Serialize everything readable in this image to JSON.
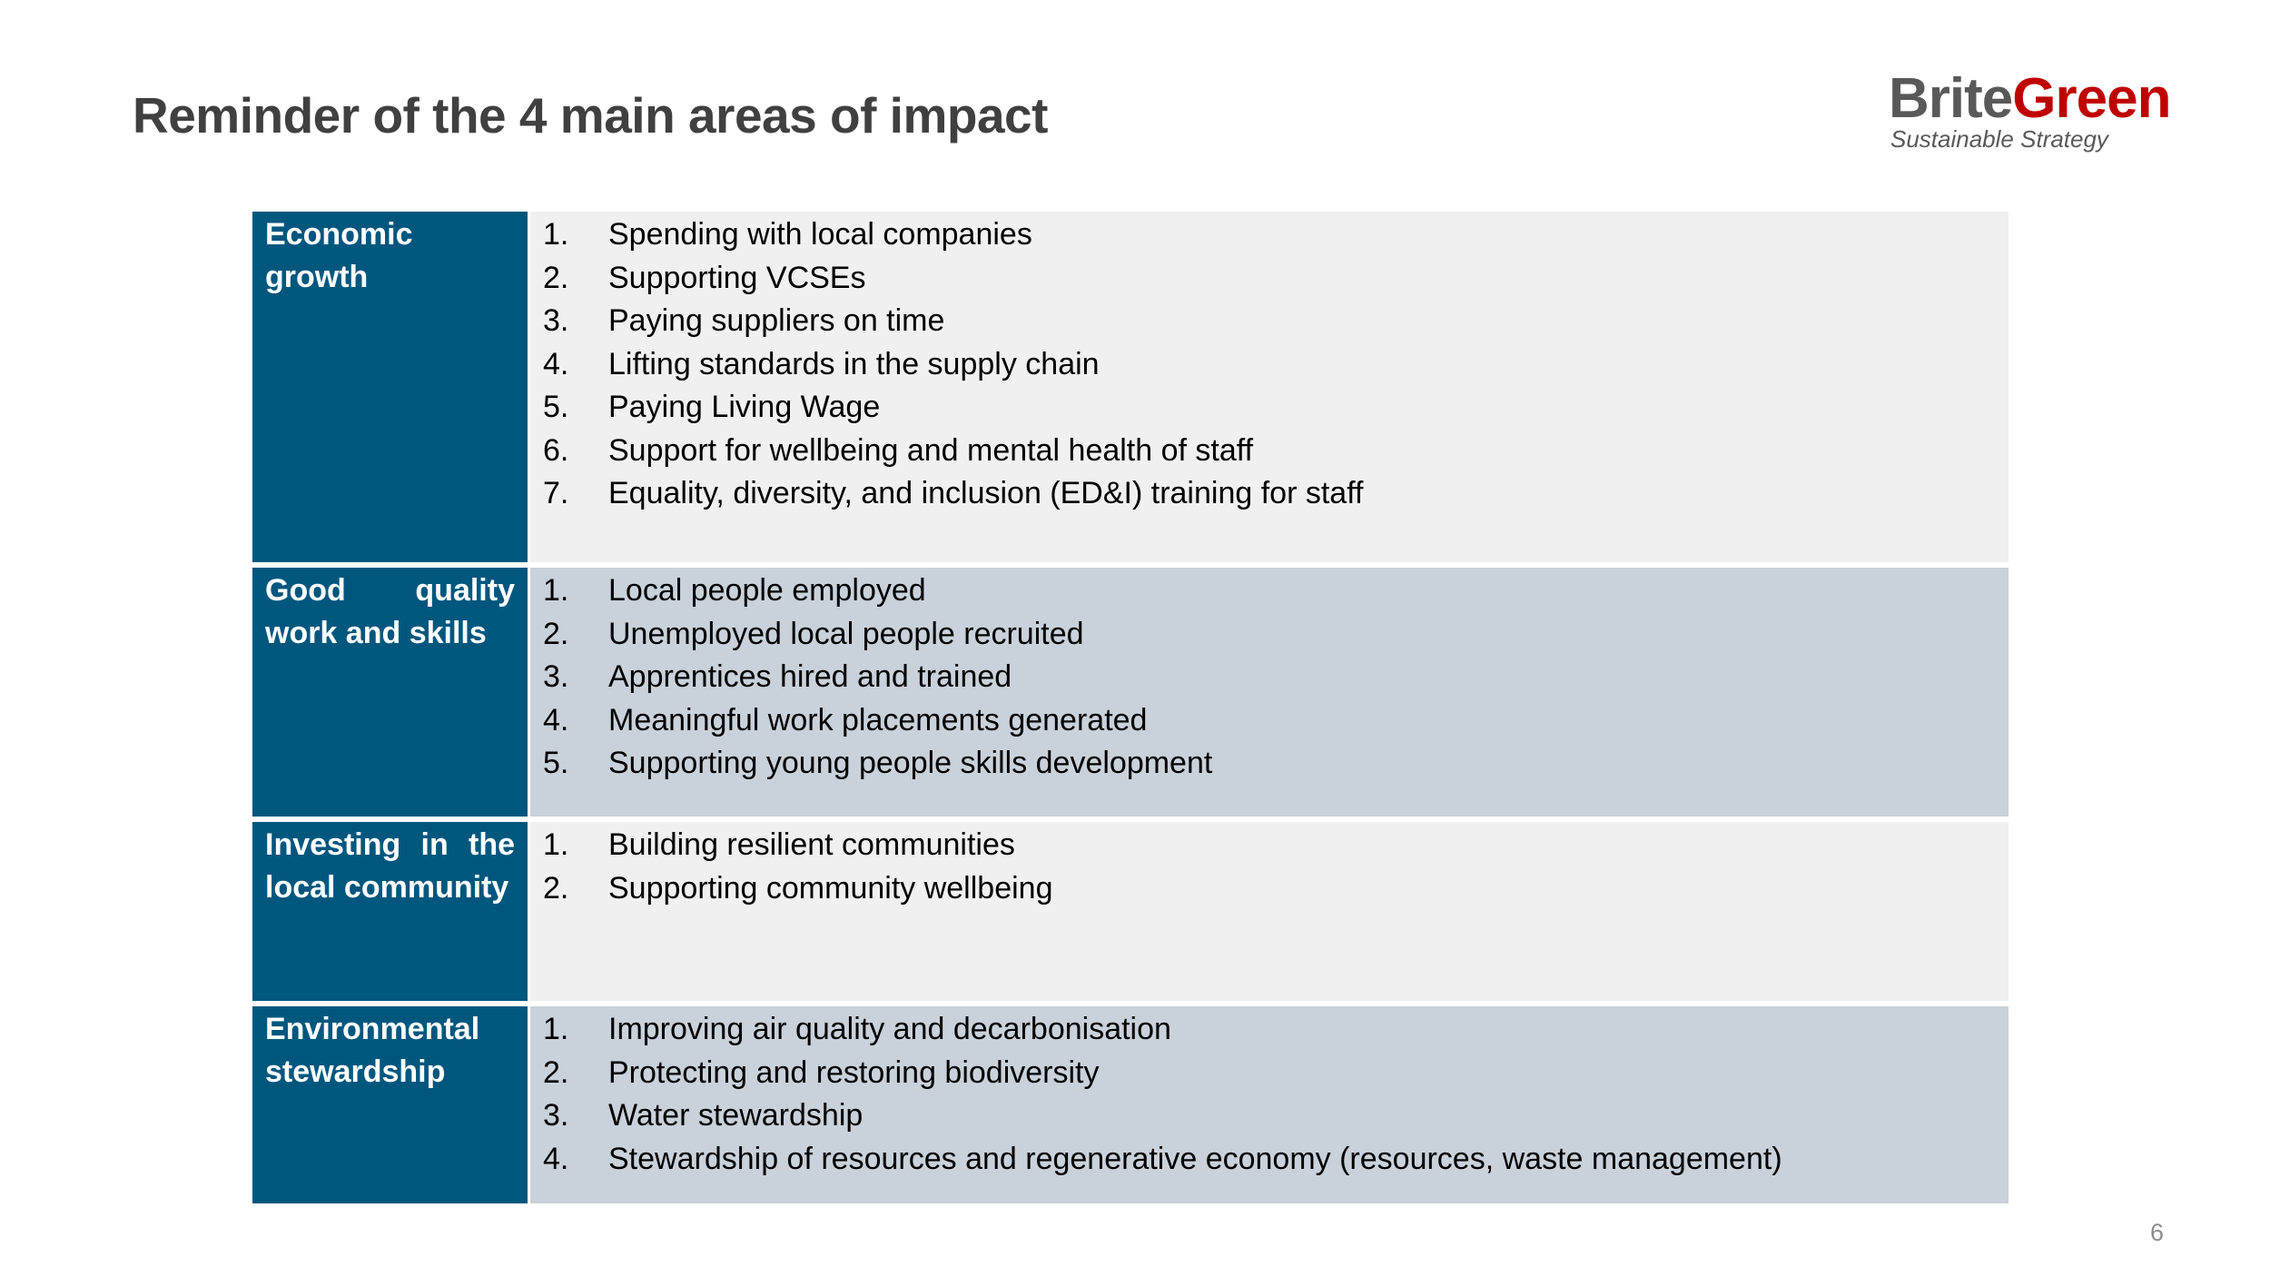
{
  "slide": {
    "title": "Reminder of the 4 main areas of impact",
    "page_number": "6"
  },
  "logo": {
    "brite": "Brite",
    "green": "Green",
    "tagline": "Sustainable Strategy"
  },
  "colors": {
    "category_bg": "#00577e",
    "row_light": "#f0f0f0",
    "row_dark": "#c9d1da",
    "logo_red": "#c00000"
  },
  "areas": [
    {
      "category": "Economic growth",
      "items": [
        {
          "num": "1.",
          "text": "Spending with local companies"
        },
        {
          "num": "2.",
          "text": "Supporting VCSEs"
        },
        {
          "num": "3.",
          "text": "Paying suppliers on time"
        },
        {
          "num": "4.",
          "text": "Lifting standards in the supply chain"
        },
        {
          "num": "5.",
          "text": "Paying Living Wage"
        },
        {
          "num": "6.",
          "text": "Support for wellbeing and mental health of staff"
        },
        {
          "num": "7.",
          "text": "Equality, diversity, and inclusion (ED&I) training for staff"
        }
      ]
    },
    {
      "category": "Good quality work and skills",
      "items": [
        {
          "num": "1.",
          "text": "Local people employed"
        },
        {
          "num": "2.",
          "text": "Unemployed local people recruited"
        },
        {
          "num": "3.",
          "text": "Apprentices hired and trained"
        },
        {
          "num": "4.",
          "text": "Meaningful work placements generated"
        },
        {
          "num": "5.",
          "text": "Supporting young people skills development"
        }
      ]
    },
    {
      "category": "Investing in the local community",
      "items": [
        {
          "num": "1.",
          "text": "Building resilient communities"
        },
        {
          "num": "2.",
          "text": "Supporting community wellbeing"
        }
      ]
    },
    {
      "category": "Environmental stewardship",
      "items": [
        {
          "num": "1.",
          "text": "Improving air quality and decarbonisation"
        },
        {
          "num": "2.",
          "text": "Protecting and restoring biodiversity"
        },
        {
          "num": "3.",
          "text": "Water stewardship"
        },
        {
          "num": "4.",
          "text": "Stewardship of resources and regenerative economy (resources, waste management)"
        }
      ]
    }
  ]
}
